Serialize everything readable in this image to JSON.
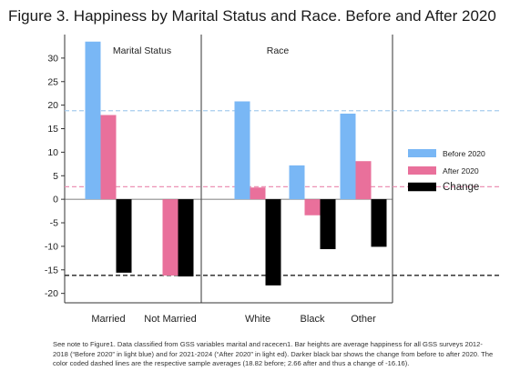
{
  "title": "Figure 3.  Happiness by Marital Status and Race. Before and After 2020",
  "note": "See note to Figure1. Data classified from GSS variables marital and racecen1. Bar heights are average happiness for all GSS surveys 2012-2018 (“Before 2020” in light blue) and for 2021-2024 (“After 2020” in light ed).  Darker black bar shows the change from before to after 2020. The color coded dashed lines are the respective sample averages (18.82 before; 2.66 after and thus a change of -16.16).",
  "chart_data": {
    "type": "bar",
    "ylim": [
      -22,
      35
    ],
    "yticks": [
      -20,
      -15,
      -10,
      -5,
      0,
      5,
      10,
      15,
      20,
      25,
      30
    ],
    "grid": false,
    "legend_position": "right",
    "panels": [
      {
        "label": "Marital Status",
        "categories": [
          "Married",
          "Not Married"
        ],
        "series": [
          {
            "name": "Before 2020",
            "values": [
              33.5,
              null
            ]
          },
          {
            "name": "After 2020",
            "values": [
              17.9,
              -16.2
            ]
          },
          {
            "name": "Change",
            "values": [
              -15.6,
              -16.4
            ]
          }
        ]
      },
      {
        "label": "Race",
        "categories": [
          "White",
          "Black",
          "Other"
        ],
        "series": [
          {
            "name": "Before 2020",
            "values": [
              20.8,
              7.2,
              18.2
            ]
          },
          {
            "name": "After 2020",
            "values": [
              2.5,
              -3.4,
              8.1
            ]
          },
          {
            "name": "Change",
            "values": [
              -18.3,
              -10.6,
              -10.1
            ]
          }
        ]
      }
    ],
    "reference_lines": [
      {
        "series": "Before 2020",
        "value": 18.82
      },
      {
        "series": "After 2020",
        "value": 2.66
      },
      {
        "series": "Change",
        "value": -16.16
      }
    ],
    "colors": {
      "Before 2020": "#79b7f5",
      "After 2020": "#e9709b",
      "Change": "#000000",
      "Before 2020 line": "#a8cdee",
      "After 2020 line": "#ec92b4",
      "Change line": "#222222"
    }
  }
}
